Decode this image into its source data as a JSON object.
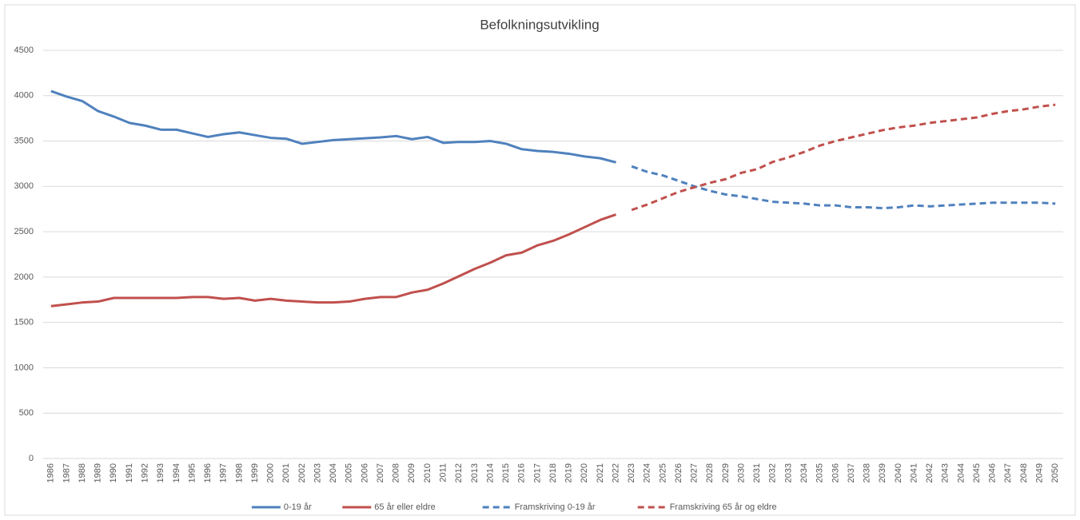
{
  "chart_data": {
    "type": "line",
    "title": "Befolkningsutvikling",
    "categories": [
      "1986",
      "1987",
      "1988",
      "1989",
      "1990",
      "1991",
      "1992",
      "1993",
      "1994",
      "1995",
      "1996",
      "1997",
      "1998",
      "1999",
      "2000",
      "2001",
      "2002",
      "2003",
      "2004",
      "2005",
      "2006",
      "2007",
      "2008",
      "2009",
      "2010",
      "2011",
      "2012",
      "2013",
      "2014",
      "2015",
      "2016",
      "2017",
      "2018",
      "2019",
      "2020",
      "2021",
      "2022",
      "2023",
      "2024",
      "2025",
      "2026",
      "2027",
      "2028",
      "2029",
      "2030",
      "2031",
      "2032",
      "2033",
      "2034",
      "2035",
      "2036",
      "2037",
      "2038",
      "2039",
      "2040",
      "2041",
      "2042",
      "2043",
      "2044",
      "2045",
      "2046",
      "2047",
      "2048",
      "2049",
      "2050"
    ],
    "series": [
      {
        "name": "0-19 år",
        "color": "#4f81bd",
        "dashed": false,
        "values": [
          4050,
          3990,
          3940,
          3830,
          3770,
          3700,
          3670,
          3625,
          3625,
          3585,
          3545,
          3575,
          3595,
          3565,
          3535,
          3525,
          3470,
          3490,
          3510,
          3520,
          3530,
          3540,
          3555,
          3520,
          3545,
          3480,
          3490,
          3490,
          3500,
          3470,
          3410,
          3390,
          3380,
          3360,
          3330,
          3310,
          3265,
          null,
          null,
          null,
          null,
          null,
          null,
          null,
          null,
          null,
          null,
          null,
          null,
          null,
          null,
          null,
          null,
          null,
          null,
          null,
          null,
          null,
          null,
          null,
          null,
          null,
          null,
          null,
          null
        ]
      },
      {
        "name": "65 år eller eldre",
        "color": "#c0504d",
        "dashed": false,
        "values": [
          1680,
          1700,
          1720,
          1730,
          1770,
          1770,
          1770,
          1770,
          1770,
          1780,
          1780,
          1760,
          1770,
          1740,
          1760,
          1740,
          1730,
          1720,
          1720,
          1730,
          1760,
          1780,
          1780,
          1830,
          1860,
          1930,
          2010,
          2090,
          2160,
          2240,
          2270,
          2350,
          2400,
          2470,
          2550,
          2630,
          2690,
          null,
          null,
          null,
          null,
          null,
          null,
          null,
          null,
          null,
          null,
          null,
          null,
          null,
          null,
          null,
          null,
          null,
          null,
          null,
          null,
          null,
          null,
          null,
          null,
          null,
          null,
          null,
          null
        ]
      },
      {
        "name": "Framskriving 0-19 år",
        "color": "#4f81bd",
        "dashed": true,
        "values": [
          null,
          null,
          null,
          null,
          null,
          null,
          null,
          null,
          null,
          null,
          null,
          null,
          null,
          null,
          null,
          null,
          null,
          null,
          null,
          null,
          null,
          null,
          null,
          null,
          null,
          null,
          null,
          null,
          null,
          null,
          null,
          null,
          null,
          null,
          null,
          null,
          null,
          3220,
          3160,
          3120,
          3060,
          3000,
          2950,
          2910,
          2890,
          2860,
          2830,
          2820,
          2810,
          2790,
          2790,
          2770,
          2770,
          2760,
          2770,
          2790,
          2780,
          2790,
          2800,
          2810,
          2820,
          2820,
          2820,
          2820,
          2810
        ]
      },
      {
        "name": "Framskriving 65 år og eldre",
        "color": "#c0504d",
        "dashed": true,
        "values": [
          null,
          null,
          null,
          null,
          null,
          null,
          null,
          null,
          null,
          null,
          null,
          null,
          null,
          null,
          null,
          null,
          null,
          null,
          null,
          null,
          null,
          null,
          null,
          null,
          null,
          null,
          null,
          null,
          null,
          null,
          null,
          null,
          null,
          null,
          null,
          null,
          null,
          2740,
          2800,
          2870,
          2940,
          2990,
          3040,
          3080,
          3150,
          3190,
          3270,
          3320,
          3380,
          3450,
          3500,
          3540,
          3580,
          3620,
          3650,
          3670,
          3700,
          3720,
          3740,
          3760,
          3800,
          3830,
          3850,
          3880,
          3900
        ]
      }
    ],
    "ylim": [
      0,
      4500
    ],
    "yticks": [
      0,
      500,
      1000,
      1500,
      2000,
      2500,
      3000,
      3500,
      4000,
      4500
    ],
    "grid": true,
    "legend": "bottom"
  }
}
